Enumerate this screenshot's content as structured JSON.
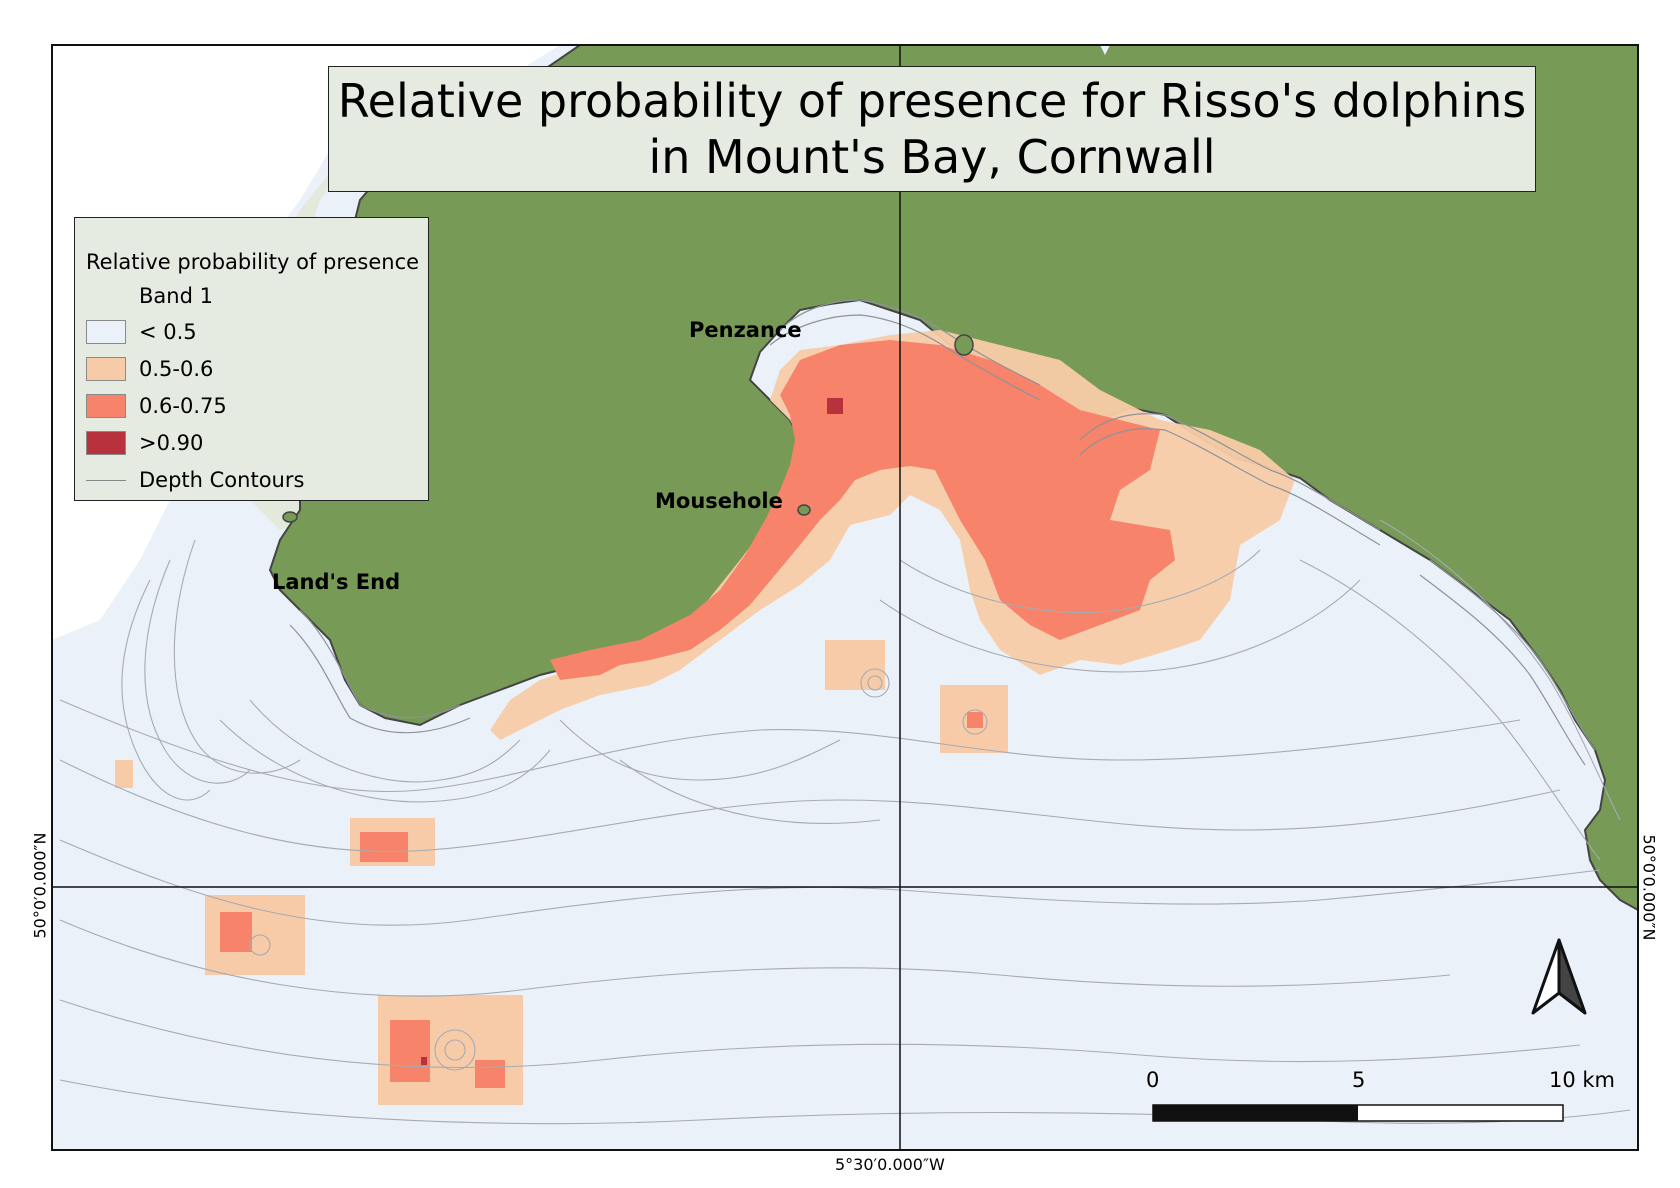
{
  "title": {
    "line1": "Relative probability of presence for Risso's dolphins",
    "line2": "in Mount's Bay, Cornwall"
  },
  "legend": {
    "title": "Relative probability of presence",
    "band": "Band 1",
    "items": [
      {
        "label": "< 0.5",
        "color": "#eaf1f8"
      },
      {
        "label": "0.5-0.6",
        "color": "#f8cba8"
      },
      {
        "label": "0.6-0.75",
        "color": "#f6836a"
      },
      {
        "label": ">0.90",
        "color": "#b8323e"
      }
    ],
    "contours_label": "Depth Contours"
  },
  "places": {
    "penzance": "Penzance",
    "mousehole": "Mousehole",
    "lands_end": "Land's End"
  },
  "grid": {
    "lat_label": "50°0′0.000″N",
    "lon_label": "5°30′0.000″W"
  },
  "scale_bar": {
    "tick0": "0",
    "tick1": "5",
    "tick2": "10 km"
  },
  "colors": {
    "land": "#779a56",
    "sea": "#eaf1f8",
    "light_land": "#e3eadc",
    "coast": "#444444",
    "contour": "#a6abb2"
  }
}
